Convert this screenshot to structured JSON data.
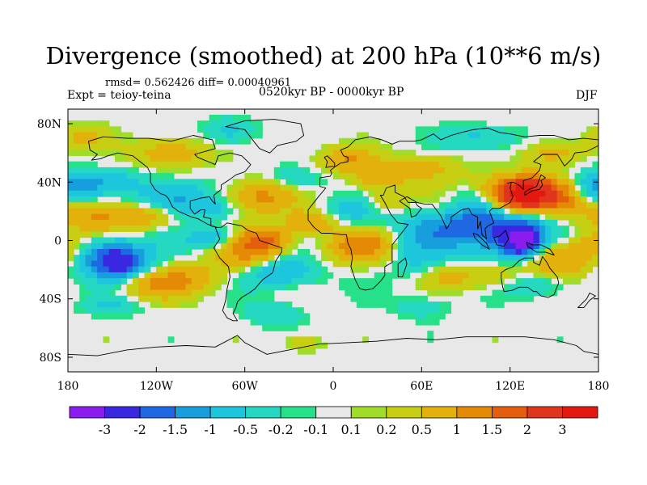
{
  "title": "Divergence (smoothed) at 200 hPa (10**6 m/s)",
  "stats": "rmsd= 0.562426 diff= 0.00040961",
  "experiment": "Expt = teioy-teina",
  "period": "0520kyr BP - 0000kyr BP",
  "season": "DJF",
  "colors": {
    "background_land_ocean": "#e8e8e8",
    "coastline": "#000000",
    "palette": [
      "#8b1cf0",
      "#3a27e0",
      "#1f68e3",
      "#169fdc",
      "#1ec6dd",
      "#25d8c2",
      "#26e08a",
      "#e8e8e8",
      "#9fdd29",
      "#c8cf13",
      "#e3b10c",
      "#e58a05",
      "#e45e0d",
      "#e0341c",
      "#e31810"
    ]
  },
  "chart_data": {
    "type": "heatmap",
    "title": "Divergence (smoothed) at 200 hPa (10**6 m/s)",
    "x_range": [
      -180,
      180
    ],
    "y_range": [
      -90,
      90
    ],
    "x_ticks": [
      {
        "value": -180,
        "label": "180"
      },
      {
        "value": -120,
        "label": "120W"
      },
      {
        "value": -60,
        "label": "60W"
      },
      {
        "value": 0,
        "label": "0"
      },
      {
        "value": 60,
        "label": "60E"
      },
      {
        "value": 120,
        "label": "120E"
      },
      {
        "value": 180,
        "label": "180"
      }
    ],
    "y_ticks": [
      {
        "value": 80,
        "label": "80N"
      },
      {
        "value": 40,
        "label": "40N"
      },
      {
        "value": 0,
        "label": "0"
      },
      {
        "value": -40,
        "label": "40S"
      },
      {
        "value": -80,
        "label": "80S"
      }
    ],
    "colorbar_levels": [
      "-3",
      "-2",
      "-1.5",
      "-1",
      "-0.5",
      "-0.2",
      "-0.1",
      "0.1",
      "0.2",
      "0.5",
      "1",
      "1.5",
      "2",
      "3"
    ],
    "features": [
      {
        "lon": 128,
        "lat": 0,
        "value": -3.2,
        "sx": 10,
        "sy": 8
      },
      {
        "lon": 110,
        "lat": 5,
        "value": -1.6,
        "sx": 22,
        "sy": 12
      },
      {
        "lon": 100,
        "lat": 18,
        "value": -1.0,
        "sx": 12,
        "sy": 8
      },
      {
        "lon": 132,
        "lat": 32,
        "value": 3.0,
        "sx": 14,
        "sy": 8
      },
      {
        "lon": 112,
        "lat": 30,
        "value": 1.2,
        "sx": 18,
        "sy": 9
      },
      {
        "lon": 160,
        "lat": 28,
        "value": 1.0,
        "sx": 14,
        "sy": 8
      },
      {
        "lon": 95,
        "lat": 30,
        "value": -0.6,
        "sx": 10,
        "sy": 6
      },
      {
        "lon": 72,
        "lat": 8,
        "value": -0.9,
        "sx": 18,
        "sy": 8
      },
      {
        "lon": 55,
        "lat": -10,
        "value": -0.7,
        "sx": 14,
        "sy": 10
      },
      {
        "lon": 150,
        "lat": -12,
        "value": 1.3,
        "sx": 18,
        "sy": 10
      },
      {
        "lon": 178,
        "lat": -5,
        "value": 1.0,
        "sx": 10,
        "sy": 8
      },
      {
        "lon": 175,
        "lat": 35,
        "value": -0.8,
        "sx": 10,
        "sy": 8
      },
      {
        "lon": -175,
        "lat": 35,
        "value": -0.9,
        "sx": 12,
        "sy": 8
      },
      {
        "lon": -145,
        "lat": -15,
        "value": -2.2,
        "sx": 12,
        "sy": 8
      },
      {
        "lon": -160,
        "lat": -10,
        "value": -1.0,
        "sx": 22,
        "sy": 10
      },
      {
        "lon": -165,
        "lat": 18,
        "value": 1.0,
        "sx": 16,
        "sy": 8
      },
      {
        "lon": -130,
        "lat": 15,
        "value": 0.8,
        "sx": 16,
        "sy": 6
      },
      {
        "lon": -110,
        "lat": 32,
        "value": -1.1,
        "sx": 16,
        "sy": 7
      },
      {
        "lon": -150,
        "lat": 40,
        "value": -0.7,
        "sx": 14,
        "sy": 6
      },
      {
        "lon": -90,
        "lat": 22,
        "value": -0.8,
        "sx": 16,
        "sy": 6
      },
      {
        "lon": -50,
        "lat": 30,
        "value": 1.2,
        "sx": 16,
        "sy": 8
      },
      {
        "lon": -25,
        "lat": 42,
        "value": -0.6,
        "sx": 14,
        "sy": 6
      },
      {
        "lon": -45,
        "lat": 0,
        "value": 1.6,
        "sx": 12,
        "sy": 6
      },
      {
        "lon": -60,
        "lat": -10,
        "value": 1.0,
        "sx": 14,
        "sy": 8
      },
      {
        "lon": -80,
        "lat": 2,
        "value": -1.0,
        "sx": 12,
        "sy": 5
      },
      {
        "lon": -35,
        "lat": -22,
        "value": -1.0,
        "sx": 18,
        "sy": 7
      },
      {
        "lon": -120,
        "lat": -30,
        "value": 1.0,
        "sx": 18,
        "sy": 7
      },
      {
        "lon": -95,
        "lat": -25,
        "value": 0.6,
        "sx": 16,
        "sy": 7
      },
      {
        "lon": -15,
        "lat": 12,
        "value": 1.1,
        "sx": 12,
        "sy": 6
      },
      {
        "lon": 20,
        "lat": 20,
        "value": -0.8,
        "sx": 18,
        "sy": 7
      },
      {
        "lon": 20,
        "lat": -5,
        "value": 1.2,
        "sx": 18,
        "sy": 8
      },
      {
        "lon": 30,
        "lat": 42,
        "value": 0.8,
        "sx": 14,
        "sy": 6
      },
      {
        "lon": 10,
        "lat": 55,
        "value": 1.0,
        "sx": 14,
        "sy": 6
      },
      {
        "lon": 60,
        "lat": 50,
        "value": 0.7,
        "sx": 18,
        "sy": 6
      },
      {
        "lon": 35,
        "lat": 25,
        "value": 0.9,
        "sx": 10,
        "sy": 6
      },
      {
        "lon": -110,
        "lat": 60,
        "value": 0.8,
        "sx": 18,
        "sy": 7
      },
      {
        "lon": -70,
        "lat": 75,
        "value": -0.7,
        "sx": 12,
        "sy": 6
      },
      {
        "lon": 100,
        "lat": 70,
        "value": -0.6,
        "sx": 20,
        "sy": 6
      },
      {
        "lon": 150,
        "lat": 60,
        "value": 0.7,
        "sx": 14,
        "sy": 6
      },
      {
        "lon": -170,
        "lat": 70,
        "value": 0.6,
        "sx": 12,
        "sy": 6
      },
      {
        "lon": 140,
        "lat": -30,
        "value": -0.7,
        "sx": 16,
        "sy": 6
      },
      {
        "lon": 110,
        "lat": -25,
        "value": 0.6,
        "sx": 12,
        "sy": 6
      },
      {
        "lon": 80,
        "lat": -25,
        "value": 0.6,
        "sx": 14,
        "sy": 6
      },
      {
        "lon": 60,
        "lat": -45,
        "value": -0.4,
        "sx": 14,
        "sy": 6
      },
      {
        "lon": -40,
        "lat": -50,
        "value": -0.5,
        "sx": 14,
        "sy": 6
      },
      {
        "lon": -150,
        "lat": -45,
        "value": -0.5,
        "sx": 14,
        "sy": 5
      },
      {
        "lon": -20,
        "lat": -70,
        "value": 0.4,
        "sx": 10,
        "sy": 5
      }
    ]
  }
}
